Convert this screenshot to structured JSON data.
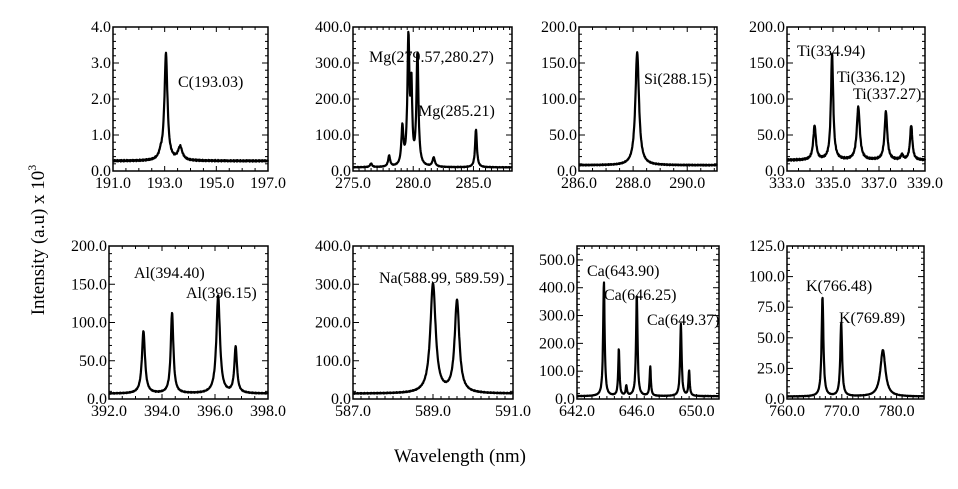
{
  "ylabel": "Intensity (a.u) x 10",
  "ylabel_sup": "3",
  "xlabel": "Wavelength (nm)",
  "chart_data": [
    {
      "type": "line",
      "xlim": [
        191,
        197
      ],
      "ylim": [
        0,
        4
      ],
      "baseline": 0.28,
      "xticks": [
        191,
        193,
        195,
        197
      ],
      "xtick_labels": [
        "191.0",
        "193.0",
        "195.0",
        "197.0"
      ],
      "yticks": [
        0,
        1,
        2,
        3,
        4
      ],
      "ytick_labels": [
        "0.0",
        "1.0",
        "2.0",
        "3.0",
        "4.0"
      ],
      "peaks": [
        {
          "x": 192.85,
          "y": 0.42,
          "w": 0.08
        },
        {
          "x": 193.05,
          "y": 3.25,
          "w": 0.07
        },
        {
          "x": 193.6,
          "y": 0.65,
          "w": 0.1
        }
      ],
      "annotations": [
        "C(193.03)"
      ]
    },
    {
      "type": "line",
      "xlim": [
        275,
        288.2
      ],
      "ylim": [
        0,
        400
      ],
      "baseline": 10,
      "xticks": [
        275,
        280,
        285
      ],
      "xtick_labels": [
        "275.0",
        "280.0",
        "285.0"
      ],
      "yticks": [
        0,
        100,
        200,
        300,
        400
      ],
      "ytick_labels": [
        "0.0",
        "100.0",
        "200.0",
        "300.0",
        "400.0"
      ],
      "peaks": [
        {
          "x": 276.5,
          "y": 20,
          "w": 0.1
        },
        {
          "x": 278.0,
          "y": 40,
          "w": 0.1
        },
        {
          "x": 279.1,
          "y": 115,
          "w": 0.1
        },
        {
          "x": 279.6,
          "y": 360,
          "w": 0.1
        },
        {
          "x": 279.85,
          "y": 215,
          "w": 0.08
        },
        {
          "x": 280.35,
          "y": 320,
          "w": 0.1
        },
        {
          "x": 281.7,
          "y": 35,
          "w": 0.12
        },
        {
          "x": 285.21,
          "y": 115,
          "w": 0.09
        }
      ],
      "annotations": [
        "Mg(279.57,280.27)",
        "Mg(285.21)"
      ]
    },
    {
      "type": "line",
      "xlim": [
        286,
        291.1
      ],
      "ylim": [
        0,
        200
      ],
      "baseline": 8,
      "xticks": [
        286,
        288,
        290
      ],
      "xtick_labels": [
        "286.0",
        "288.0",
        "290.0"
      ],
      "yticks": [
        0,
        50,
        100,
        150,
        200
      ],
      "ytick_labels": [
        "0.0",
        "50.0",
        "100.0",
        "150.0",
        "200.0"
      ],
      "peaks": [
        {
          "x": 288.15,
          "y": 165,
          "w": 0.08
        }
      ],
      "annotations": [
        "Si(288.15)"
      ]
    },
    {
      "type": "line",
      "xlim": [
        333,
        339
      ],
      "ylim": [
        0,
        200
      ],
      "baseline": 15,
      "xticks": [
        333,
        335,
        337,
        339
      ],
      "xtick_labels": [
        "333.0",
        "335.0",
        "337.0",
        "339.0"
      ],
      "yticks": [
        0,
        50,
        100,
        150,
        200
      ],
      "ytick_labels": [
        "0.0",
        "50.0",
        "100.0",
        "150.0",
        "200.0"
      ],
      "peaks": [
        {
          "x": 334.2,
          "y": 62,
          "w": 0.07
        },
        {
          "x": 334.96,
          "y": 162,
          "w": 0.06
        },
        {
          "x": 336.1,
          "y": 88,
          "w": 0.08
        },
        {
          "x": 337.3,
          "y": 82,
          "w": 0.07
        },
        {
          "x": 338.0,
          "y": 22,
          "w": 0.06
        },
        {
          "x": 338.4,
          "y": 63,
          "w": 0.06
        }
      ],
      "annotations": [
        "Ti(334.94)",
        "Ti(336.12)",
        "Ti(337.27)"
      ]
    },
    {
      "type": "line",
      "xlim": [
        392,
        398
      ],
      "ylim": [
        0,
        200
      ],
      "baseline": 7,
      "xticks": [
        392,
        394,
        396,
        398
      ],
      "xtick_labels": [
        "392.0",
        "394.0",
        "396.0",
        "398.0"
      ],
      "yticks": [
        0,
        50,
        100,
        150,
        200
      ],
      "ytick_labels": [
        "0.0",
        "50.0",
        "100.0",
        "150.0",
        "200.0"
      ],
      "peaks": [
        {
          "x": 393.3,
          "y": 88,
          "w": 0.07
        },
        {
          "x": 394.38,
          "y": 112,
          "w": 0.06
        },
        {
          "x": 396.12,
          "y": 135,
          "w": 0.08
        },
        {
          "x": 396.78,
          "y": 67,
          "w": 0.06
        }
      ],
      "annotations": [
        "Al(394.40)",
        "Al(396.15)"
      ]
    },
    {
      "type": "line",
      "xlim": [
        587,
        591
      ],
      "ylim": [
        0,
        400
      ],
      "baseline": 14,
      "xticks": [
        587,
        589,
        591
      ],
      "xtick_labels": [
        "587.0",
        "589.0",
        "591.0"
      ],
      "yticks": [
        0,
        100,
        200,
        300,
        400
      ],
      "ytick_labels": [
        "0.0",
        "100.0",
        "200.0",
        "300.0",
        "400.0"
      ],
      "peaks": [
        {
          "x": 589.0,
          "y": 300,
          "w": 0.08
        },
        {
          "x": 589.6,
          "y": 255,
          "w": 0.07
        }
      ],
      "annotations": [
        "Na(588.99, 589.59)"
      ]
    },
    {
      "type": "line",
      "xlim": [
        642,
        651.5
      ],
      "ylim": [
        0,
        550
      ],
      "baseline": 10,
      "xticks": [
        642,
        646,
        650
      ],
      "xtick_labels": [
        "642.0",
        "646.0",
        "650.0"
      ],
      "yticks": [
        0,
        100,
        200,
        300,
        400,
        500
      ],
      "ytick_labels": [
        "0.0",
        "100.0",
        "200.0",
        "300.0",
        "400.0",
        "500.0"
      ],
      "peaks": [
        {
          "x": 643.8,
          "y": 420,
          "w": 0.06
        },
        {
          "x": 644.8,
          "y": 180,
          "w": 0.05
        },
        {
          "x": 645.3,
          "y": 45,
          "w": 0.05
        },
        {
          "x": 646.0,
          "y": 375,
          "w": 0.06
        },
        {
          "x": 646.9,
          "y": 115,
          "w": 0.05
        },
        {
          "x": 648.95,
          "y": 270,
          "w": 0.06
        },
        {
          "x": 649.5,
          "y": 100,
          "w": 0.05
        }
      ],
      "annotations": [
        "Ca(643.90)",
        "Ca(646.25)",
        "Ca(649.37)"
      ]
    },
    {
      "type": "line",
      "xlim": [
        760,
        785
      ],
      "ylim": [
        0,
        125
      ],
      "baseline": 2,
      "xticks": [
        760,
        770,
        780
      ],
      "xtick_labels": [
        "760.0",
        "770.0",
        "780.0"
      ],
      "yticks": [
        0,
        25,
        50,
        75,
        100,
        125
      ],
      "ytick_labels": [
        "0.0",
        "25.0",
        "50.0",
        "75.0",
        "100.0",
        "125.0"
      ],
      "peaks": [
        {
          "x": 766.48,
          "y": 83,
          "w": 0.2
        },
        {
          "x": 769.89,
          "y": 62,
          "w": 0.2
        },
        {
          "x": 777.5,
          "y": 40,
          "w": 0.55
        }
      ],
      "annotations": [
        "K(766.48)",
        "K(769.89)"
      ]
    }
  ]
}
